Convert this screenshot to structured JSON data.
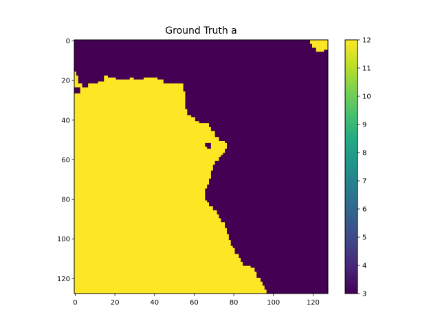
{
  "chart_data": {
    "type": "heatmap",
    "title": "Ground Truth a",
    "xlabel": "",
    "ylabel": "",
    "grid": false,
    "xlim": [
      0,
      128
    ],
    "ylim": [
      128,
      0
    ],
    "x_ticks": [
      0,
      20,
      40,
      60,
      80,
      100,
      120
    ],
    "y_ticks": [
      0,
      20,
      40,
      60,
      80,
      100,
      120
    ],
    "x_tick_labels": [
      "0",
      "20",
      "40",
      "60",
      "80",
      "100",
      "120"
    ],
    "y_tick_labels": [
      "0",
      "20",
      "40",
      "60",
      "80",
      "100",
      "120"
    ],
    "colorbar": {
      "range": [
        3,
        12
      ],
      "ticks": [
        3,
        4,
        5,
        6,
        7,
        8,
        9,
        10,
        11,
        12
      ],
      "tick_labels": [
        "3",
        "4",
        "5",
        "6",
        "7",
        "8",
        "9",
        "10",
        "11",
        "12"
      ],
      "colormap": "viridis"
    },
    "colors": {
      "low": "#440154",
      "high": "#fde725"
    },
    "background_value": 3,
    "region_value": 12,
    "regions": [
      {
        "name": "left-landmass",
        "value": 12,
        "boundary": [
          [
            0,
            16
          ],
          [
            1,
            16
          ],
          [
            1,
            18
          ],
          [
            2,
            18
          ],
          [
            2,
            22
          ],
          [
            4,
            22
          ],
          [
            4,
            24
          ],
          [
            7,
            24
          ],
          [
            7,
            22
          ],
          [
            12,
            22
          ],
          [
            12,
            21
          ],
          [
            15,
            21
          ],
          [
            15,
            18
          ],
          [
            17,
            18
          ],
          [
            17,
            19
          ],
          [
            21,
            19
          ],
          [
            21,
            20
          ],
          [
            28,
            20
          ],
          [
            28,
            19
          ],
          [
            30,
            19
          ],
          [
            30,
            20
          ],
          [
            35,
            20
          ],
          [
            35,
            19
          ],
          [
            42,
            19
          ],
          [
            42,
            20
          ],
          [
            45,
            20
          ],
          [
            45,
            22
          ],
          [
            55,
            22
          ],
          [
            55,
            26
          ],
          [
            56,
            26
          ],
          [
            56,
            35
          ],
          [
            57,
            35
          ],
          [
            57,
            38
          ],
          [
            59,
            38
          ],
          [
            59,
            39
          ],
          [
            61,
            39
          ],
          [
            61,
            41
          ],
          [
            63,
            41
          ],
          [
            63,
            42
          ],
          [
            68,
            42
          ],
          [
            68,
            44
          ],
          [
            69,
            44
          ],
          [
            69,
            46
          ],
          [
            71,
            46
          ],
          [
            71,
            49
          ],
          [
            73,
            49
          ],
          [
            73,
            51
          ],
          [
            76,
            51
          ],
          [
            76,
            52
          ],
          [
            77,
            52
          ],
          [
            77,
            55
          ],
          [
            76,
            55
          ],
          [
            76,
            57
          ],
          [
            75,
            57
          ],
          [
            75,
            58
          ],
          [
            74,
            58
          ],
          [
            74,
            59
          ],
          [
            73,
            59
          ],
          [
            73,
            61
          ],
          [
            71,
            61
          ],
          [
            71,
            63
          ],
          [
            70,
            63
          ],
          [
            70,
            66
          ],
          [
            69,
            66
          ],
          [
            69,
            70
          ],
          [
            68,
            70
          ],
          [
            68,
            73
          ],
          [
            67,
            73
          ],
          [
            67,
            75
          ],
          [
            66,
            75
          ],
          [
            66,
            81
          ],
          [
            67,
            81
          ],
          [
            67,
            82
          ],
          [
            68,
            82
          ],
          [
            68,
            84
          ],
          [
            70,
            84
          ],
          [
            70,
            86
          ],
          [
            72,
            86
          ],
          [
            72,
            88
          ],
          [
            73,
            88
          ],
          [
            73,
            90
          ],
          [
            74,
            90
          ],
          [
            74,
            92
          ],
          [
            76,
            92
          ],
          [
            76,
            95
          ],
          [
            77,
            95
          ],
          [
            77,
            98
          ],
          [
            78,
            98
          ],
          [
            78,
            101
          ],
          [
            79,
            101
          ],
          [
            79,
            104
          ],
          [
            80,
            104
          ],
          [
            80,
            105
          ],
          [
            81,
            105
          ],
          [
            81,
            108
          ],
          [
            83,
            108
          ],
          [
            83,
            110
          ],
          [
            84,
            110
          ],
          [
            84,
            112
          ],
          [
            85,
            112
          ],
          [
            85,
            114
          ],
          [
            89,
            114
          ],
          [
            89,
            115
          ],
          [
            91,
            115
          ],
          [
            91,
            117
          ],
          [
            92,
            117
          ],
          [
            92,
            120
          ],
          [
            94,
            120
          ],
          [
            94,
            122
          ],
          [
            95,
            122
          ],
          [
            95,
            124
          ],
          [
            96,
            124
          ],
          [
            96,
            126
          ],
          [
            97,
            126
          ],
          [
            97,
            128
          ],
          [
            0,
            128
          ]
        ]
      },
      {
        "name": "top-right-patch",
        "value": 12,
        "boundary": [
          [
            119,
            0
          ],
          [
            128,
            0
          ],
          [
            128,
            5
          ],
          [
            126,
            5
          ],
          [
            126,
            6
          ],
          [
            122,
            6
          ],
          [
            122,
            4
          ],
          [
            120,
            4
          ],
          [
            120,
            2
          ],
          [
            119,
            2
          ]
        ]
      },
      {
        "name": "hole",
        "value": 3,
        "boundary": [
          [
            66,
            52
          ],
          [
            69,
            52
          ],
          [
            69,
            55
          ],
          [
            67,
            55
          ],
          [
            67,
            54
          ],
          [
            66,
            54
          ]
        ]
      },
      {
        "name": "left-edge-notch",
        "value": 3,
        "boundary": [
          [
            0,
            24
          ],
          [
            0,
            27
          ],
          [
            3,
            27
          ],
          [
            3,
            24
          ]
        ]
      }
    ]
  }
}
